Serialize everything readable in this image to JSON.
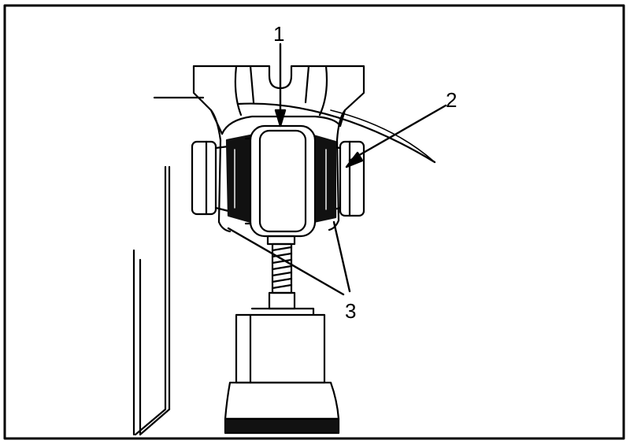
{
  "diagram": {
    "description_kind": "technical-illustration",
    "callouts": [
      {
        "id": "c1",
        "label": "1"
      },
      {
        "id": "c2",
        "label": "2"
      },
      {
        "id": "c3",
        "label": "3"
      }
    ],
    "colors": {
      "line": "#000000",
      "background": "#ffffff",
      "bushing_dark": "#111111"
    }
  }
}
